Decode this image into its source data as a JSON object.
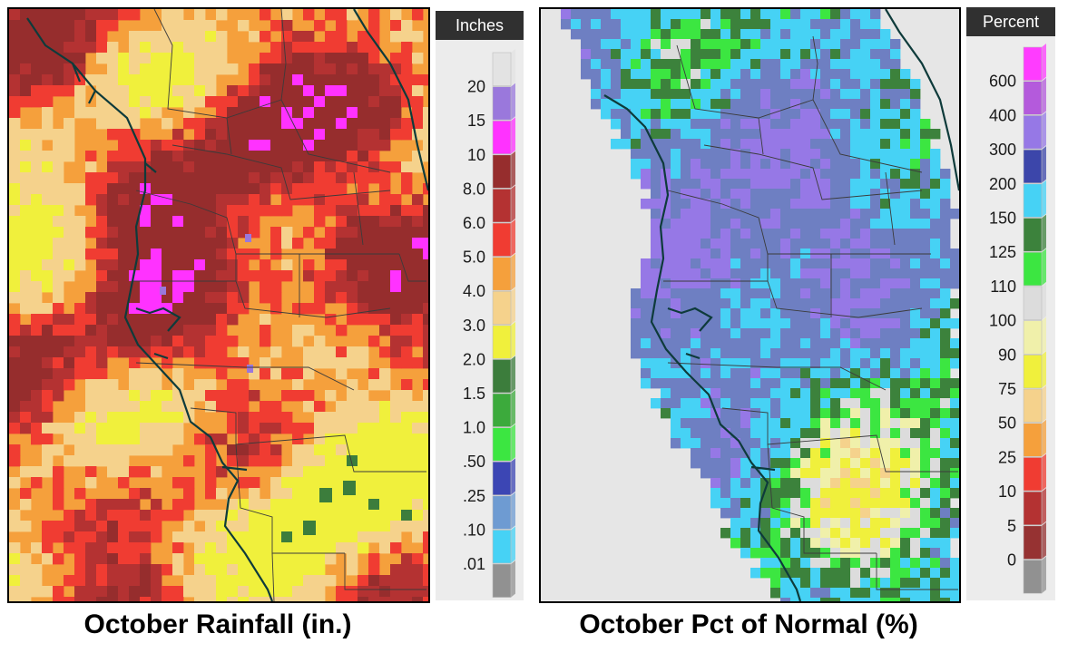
{
  "left_panel": {
    "caption": "October Rainfall (in.)",
    "legend": {
      "title": "Inches",
      "labels": [
        "20",
        "15",
        "10",
        "8.0",
        "6.0",
        "5.0",
        "4.0",
        "3.0",
        "2.0",
        "1.5",
        "1.0",
        ".50",
        ".25",
        ".10",
        ".01"
      ],
      "colors": [
        "#e3e3e3",
        "#9a78dc",
        "#ff32ff",
        "#962d2d",
        "#b43232",
        "#f03c32",
        "#f5a03c",
        "#f5d28c",
        "#f0f03c",
        "#3c7d3c",
        "#3caa3c",
        "#3ce641",
        "#3c46b4",
        "#6e9bd2",
        "#46d2f5",
        "#919191"
      ]
    }
  },
  "right_panel": {
    "caption": "October Pct of Normal (%)",
    "legend": {
      "title": "Percent",
      "labels": [
        "600",
        "400",
        "300",
        "200",
        "150",
        "125",
        "110",
        "100",
        "90",
        "75",
        "50",
        "25",
        "10",
        "5",
        "0"
      ],
      "colors": [
        "#ff3cff",
        "#b45adc",
        "#9678e6",
        "#3c46aa",
        "#46d2f5",
        "#3c823c",
        "#3ce641",
        "#dcdcdc",
        "#f0f0aa",
        "#f0f03c",
        "#f5d28c",
        "#f5a03c",
        "#f03c32",
        "#b43232",
        "#963232",
        "#919191"
      ]
    }
  }
}
